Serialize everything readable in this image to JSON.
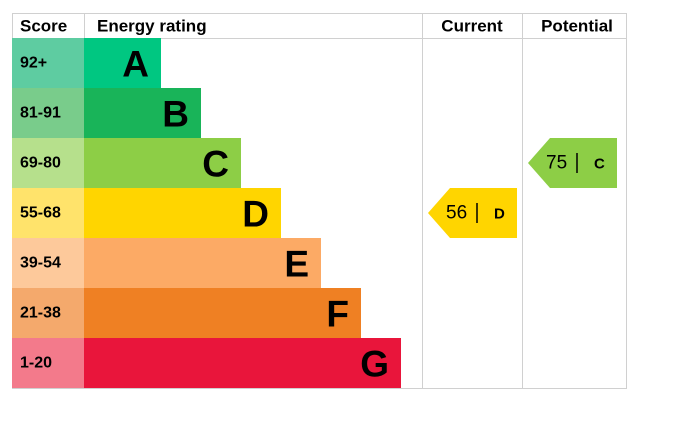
{
  "header": {
    "score": "Score",
    "rating": "Energy rating",
    "current": "Current",
    "potential": "Potential"
  },
  "bands": [
    {
      "score": "92+",
      "letter": "A",
      "color": "#00c781",
      "score_color": "#5ecca1"
    },
    {
      "score": "81-91",
      "letter": "B",
      "color": "#19b459",
      "score_color": "#79cc8b"
    },
    {
      "score": "69-80",
      "letter": "C",
      "color": "#8dce46",
      "score_color": "#b6e08c"
    },
    {
      "score": "55-68",
      "letter": "D",
      "color": "#ffd500",
      "score_color": "#ffe36b"
    },
    {
      "score": "39-54",
      "letter": "E",
      "color": "#fcaa65",
      "score_color": "#fdc99b"
    },
    {
      "score": "21-38",
      "letter": "F",
      "color": "#ef8023",
      "score_color": "#f4a96c"
    },
    {
      "score": "1-20",
      "letter": "G",
      "color": "#e9153b",
      "score_color": "#f37a8b"
    }
  ],
  "current": {
    "value": 56,
    "letter": "D"
  },
  "potential": {
    "value": 75,
    "letter": "C"
  }
}
